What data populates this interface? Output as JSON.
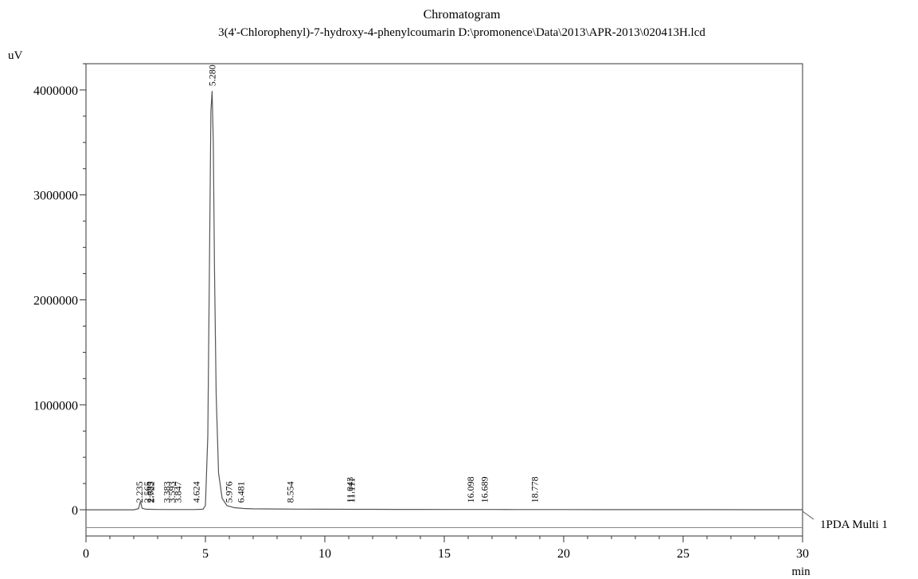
{
  "chart_data": {
    "type": "line",
    "title": "Chromatogram",
    "subtitle": "3(4'-Chlorophenyl)-7-hydroxy-4-phenylcoumarin D:\\promonence\\Data\\2013\\APR-2013\\020413H.lcd",
    "xlabel": "min",
    "ylabel": "uV",
    "xlim": [
      0,
      30
    ],
    "ylim": [
      -250000,
      4250000
    ],
    "x_ticks": [
      0,
      5,
      10,
      15,
      20,
      25,
      30
    ],
    "x_tick_labels": [
      "0",
      "5",
      "10",
      "15",
      "20",
      "25",
      "30"
    ],
    "y_ticks": [
      0,
      1000000,
      2000000,
      3000000,
      4000000
    ],
    "y_tick_labels": [
      "0",
      "1000000",
      "2000000",
      "3000000",
      "4000000"
    ],
    "grid": false,
    "colors": {
      "trace": "#555555",
      "axis": "#333333"
    },
    "series": [
      {
        "name": "1PDA Multi 1",
        "x": [
          0,
          2.0,
          2.2,
          2.28,
          2.35,
          2.5,
          3.0,
          3.5,
          4.0,
          4.5,
          4.9,
          5.0,
          5.1,
          5.18,
          5.23,
          5.28,
          5.33,
          5.38,
          5.45,
          5.55,
          5.7,
          5.9,
          6.2,
          6.6,
          7.0,
          8.0,
          9.0,
          10.0,
          11.0,
          12.0,
          13.0,
          14.0,
          15.0,
          16.0,
          17.0,
          18.0,
          19.0,
          20.0,
          22.0,
          24.0,
          26.0,
          28.0,
          30.0
        ],
        "y": [
          0,
          0,
          10000,
          80000,
          15000,
          5000,
          3000,
          2000,
          2000,
          2000,
          5000,
          40000,
          700000,
          2600000,
          3800000,
          3990000,
          3500000,
          2300000,
          1100000,
          350000,
          110000,
          40000,
          20000,
          12000,
          9000,
          7000,
          6000,
          5000,
          4500,
          4000,
          3500,
          3200,
          3000,
          2800,
          2500,
          2200,
          2000,
          1800,
          1500,
          1200,
          1000,
          800,
          500
        ]
      }
    ],
    "peak_labels": [
      "2.235",
      "2.565",
      "2.685",
      "2.722",
      "3.383",
      "3.593",
      "3.847",
      "4.624",
      "5.280",
      "5.976",
      "6.481",
      "8.554",
      "11.043",
      "11.111",
      "16.098",
      "16.689",
      "18.778"
    ],
    "peak_label_x": [
      2.235,
      2.565,
      2.685,
      2.722,
      3.383,
      3.593,
      3.847,
      4.624,
      5.28,
      5.976,
      6.481,
      8.554,
      11.043,
      11.111,
      16.098,
      16.689,
      18.778
    ],
    "peak_label_y": [
      20000,
      20000,
      20000,
      20000,
      20000,
      20000,
      20000,
      20000,
      3990000,
      20000,
      20000,
      20000,
      20000,
      20000,
      20000,
      20000,
      20000
    ],
    "trace_label": "1PDA Multi 1"
  }
}
